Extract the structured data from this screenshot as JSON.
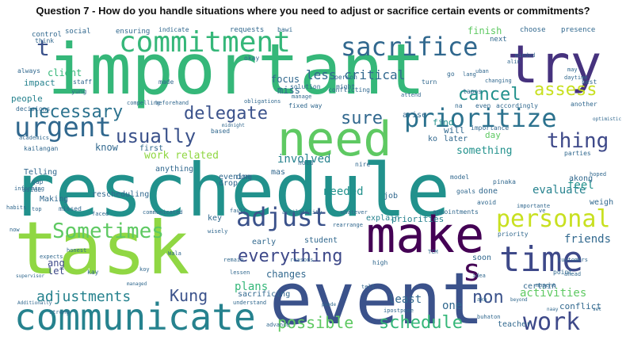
{
  "title": "Question 7 - How do you handle situations where you need to adjust or sacrifice certain events or commitments?",
  "palette": {
    "green": "#35b779",
    "lightgreen": "#90d743",
    "yellow": "#c8e020",
    "teal": "#21918c",
    "blue": "#31688e",
    "indigo": "#443983",
    "purple": "#440154",
    "cyan": "#26828e"
  },
  "words": [
    {
      "id": "reschedule",
      "text": "reschedule"
    },
    {
      "id": "important",
      "text": "important"
    },
    {
      "id": "event",
      "text": "event"
    },
    {
      "id": "task",
      "text": "task"
    },
    {
      "id": "make",
      "text": "make"
    },
    {
      "id": "need",
      "text": "need"
    },
    {
      "id": "communicate",
      "text": "communicate"
    },
    {
      "id": "try",
      "text": "try"
    },
    {
      "id": "commitment",
      "text": "commitment"
    },
    {
      "id": "sacrifice",
      "text": "sacrifice"
    },
    {
      "id": "time",
      "text": "time"
    },
    {
      "id": "prioritize",
      "text": "prioritize"
    },
    {
      "id": "urgent",
      "text": "urgent"
    },
    {
      "id": "personal",
      "text": "personal"
    },
    {
      "id": "adjust",
      "text": "adjust"
    },
    {
      "id": "work",
      "text": "work"
    },
    {
      "id": "sometimes",
      "text": "Sometimes"
    },
    {
      "id": "usually",
      "text": "usually"
    },
    {
      "id": "thing",
      "text": "thing"
    },
    {
      "id": "necessary",
      "text": "necessary"
    },
    {
      "id": "everything",
      "text": "everything"
    },
    {
      "id": "adjustments",
      "text": "adjustments"
    },
    {
      "id": "possible",
      "text": "possible"
    },
    {
      "id": "schedule",
      "text": "schedule"
    },
    {
      "id": "delegate",
      "text": "delegate"
    },
    {
      "id": "assess",
      "text": "assess"
    },
    {
      "id": "cancel",
      "text": "cancel"
    },
    {
      "id": "kung",
      "text": "Kung"
    },
    {
      "id": "situation",
      "text": "situation"
    },
    {
      "id": "sure",
      "text": "sure"
    },
    {
      "id": "non",
      "text": "non"
    },
    {
      "id": "s",
      "text": "s"
    },
    {
      "id": "t",
      "text": "t"
    },
    {
      "id": "less_critical",
      "text": "less critical"
    },
    {
      "id": "activities",
      "text": "activities"
    },
    {
      "id": "evaluate",
      "text": "evaluate"
    },
    {
      "id": "involved",
      "text": "involved"
    },
    {
      "id": "work_related",
      "text": "work related"
    },
    {
      "id": "least",
      "text": "least"
    },
    {
      "id": "focus",
      "text": "focus"
    },
    {
      "id": "changes",
      "text": "changes"
    },
    {
      "id": "needed",
      "text": "needed"
    },
    {
      "id": "inform",
      "text": "inform"
    },
    {
      "id": "something",
      "text": "something"
    },
    {
      "id": "plans",
      "text": "plans"
    },
    {
      "id": "ang",
      "text": "ang"
    },
    {
      "id": "let",
      "text": "let"
    },
    {
      "id": "one",
      "text": "one"
    },
    {
      "id": "friends",
      "text": "friends"
    },
    {
      "id": "feel",
      "text": "feel"
    },
    {
      "id": "know",
      "text": "know"
    },
    {
      "id": "miss",
      "text": "miss"
    },
    {
      "id": "finish",
      "text": "finish"
    },
    {
      "id": "client",
      "text": "client"
    },
    {
      "id": "impact",
      "text": "impact"
    },
    {
      "id": "people",
      "text": "people"
    },
    {
      "id": "find",
      "text": "find"
    },
    {
      "id": "day",
      "text": "day"
    },
    {
      "id": "will",
      "text": "will"
    },
    {
      "id": "conflict",
      "text": "conflict"
    },
    {
      "id": "rescheduling",
      "text": "rescheduling"
    },
    {
      "id": "telling",
      "text": "Telling"
    },
    {
      "id": "making",
      "text": "Making"
    },
    {
      "id": "priorities",
      "text": "priorities"
    },
    {
      "id": "explain",
      "text": "explain"
    },
    {
      "id": "drop",
      "text": "drop"
    },
    {
      "id": "early",
      "text": "early"
    },
    {
      "id": "sacrificing",
      "text": "sacrificing"
    },
    {
      "id": "certain",
      "text": "certain"
    },
    {
      "id": "teacher",
      "text": "teacher"
    },
    {
      "id": "akong",
      "text": "akong"
    },
    {
      "id": "weigh",
      "text": "weigh"
    },
    {
      "id": "first",
      "text": "first"
    },
    {
      "id": "arise",
      "text": "arise"
    },
    {
      "id": "ko",
      "text": "ko"
    },
    {
      "id": "later",
      "text": "later"
    },
    {
      "id": "done",
      "text": "done"
    },
    {
      "id": "job",
      "text": "job"
    },
    {
      "id": "mas",
      "text": "mas"
    },
    {
      "id": "don",
      "text": "don"
    },
    {
      "id": "evening",
      "text": "evening"
    },
    {
      "id": "anything",
      "text": "anything"
    },
    {
      "id": "key",
      "text": "key"
    },
    {
      "id": "student",
      "text": "student"
    },
    {
      "id": "soon",
      "text": "soon"
    },
    {
      "id": "control",
      "text": "control"
    },
    {
      "id": "social",
      "text": "social"
    },
    {
      "id": "ensuring",
      "text": "ensuring"
    },
    {
      "id": "indicate",
      "text": "indicate"
    },
    {
      "id": "requests",
      "text": "requests"
    },
    {
      "id": "bawi",
      "text": "bawi"
    },
    {
      "id": "choose",
      "text": "choose"
    },
    {
      "id": "presence",
      "text": "presence"
    },
    {
      "id": "next",
      "text": "next"
    },
    {
      "id": "think",
      "text": "think"
    },
    {
      "id": "always",
      "text": "always"
    },
    {
      "id": "staff",
      "text": "staff"
    },
    {
      "id": "yung",
      "text": "yung"
    },
    {
      "id": "decisions",
      "text": "decisions"
    },
    {
      "id": "academics",
      "text": "academics"
    },
    {
      "id": "made",
      "text": "made"
    },
    {
      "id": "compelling",
      "text": "compelling"
    },
    {
      "id": "beforehand",
      "text": "beforehand"
    },
    {
      "id": "obligations",
      "text": "obligations"
    },
    {
      "id": "solution",
      "text": "solution"
    },
    {
      "id": "conflicting",
      "text": "conflicting"
    },
    {
      "id": "person",
      "text": "person"
    },
    {
      "id": "might",
      "text": "might"
    },
    {
      "id": "okay",
      "text": "okay"
    },
    {
      "id": "manage",
      "text": "manage"
    },
    {
      "id": "fixed",
      "text": "fixed"
    },
    {
      "id": "way",
      "text": "way"
    },
    {
      "id": "attend",
      "text": "attend"
    },
    {
      "id": "turn",
      "text": "turn"
    },
    {
      "id": "go",
      "text": "go"
    },
    {
      "id": "lang",
      "text": "lang"
    },
    {
      "id": "uban",
      "text": "uban"
    },
    {
      "id": "changing",
      "text": "changing"
    },
    {
      "id": "tapos",
      "text": "tapos"
    },
    {
      "id": "alin",
      "text": "alin"
    },
    {
      "id": "minded",
      "text": "minded"
    },
    {
      "id": "may",
      "text": "may"
    },
    {
      "id": "daytime",
      "text": "daytime"
    },
    {
      "id": "best",
      "text": "best"
    },
    {
      "id": "na",
      "text": "na"
    },
    {
      "id": "even",
      "text": "even"
    },
    {
      "id": "accordingly",
      "text": "accordingly"
    },
    {
      "id": "another",
      "text": "another"
    },
    {
      "id": "optimistic",
      "text": "optimistic"
    },
    {
      "id": "importance",
      "text": "importance"
    },
    {
      "id": "parties",
      "text": "parties"
    },
    {
      "id": "based",
      "text": "based"
    },
    {
      "id": "midnight",
      "text": "midnight"
    },
    {
      "id": "kailangan",
      "text": "kailangan"
    },
    {
      "id": "hold",
      "text": "hold"
    },
    {
      "id": "nire",
      "text": "nire"
    },
    {
      "id": "pinaka",
      "text": "pinaka"
    },
    {
      "id": "goals",
      "text": "goals"
    },
    {
      "id": "appointments",
      "text": "appointments"
    },
    {
      "id": "avoid",
      "text": "avoid"
    },
    {
      "id": "model",
      "text": "model"
    },
    {
      "id": "importante",
      "text": "importante"
    },
    {
      "id": "hoped",
      "text": "hoped"
    },
    {
      "id": "gap",
      "text": "gap"
    },
    {
      "id": "aside",
      "text": "aside"
    },
    {
      "id": "informing",
      "text": "informing"
    },
    {
      "id": "habits",
      "text": "habits"
    },
    {
      "id": "top",
      "text": "top"
    },
    {
      "id": "missed",
      "text": "missed"
    },
    {
      "id": "faced",
      "text": "faced"
    },
    {
      "id": "communicated",
      "text": "communicated"
    },
    {
      "id": "fault",
      "text": "fault"
    },
    {
      "id": "availability",
      "text": "availability"
    },
    {
      "id": "whatever",
      "text": "whatever"
    },
    {
      "id": "rearrange",
      "text": "rearrange"
    },
    {
      "id": "priority",
      "text": "priority"
    },
    {
      "id": "ve",
      "text": "ve"
    },
    {
      "id": "customers",
      "text": "customers"
    },
    {
      "id": "now",
      "text": "now"
    },
    {
      "id": "supervisor",
      "text": "supervisor"
    },
    {
      "id": "additionally",
      "text": "Additionally"
    },
    {
      "id": "expects",
      "text": "expects"
    },
    {
      "id": "honest",
      "text": "honest"
    },
    {
      "id": "wisely",
      "text": "wisely"
    },
    {
      "id": "wala",
      "text": "Wala"
    },
    {
      "id": "remain",
      "text": "remain"
    },
    {
      "id": "reasons",
      "text": "reasons"
    },
    {
      "id": "high",
      "text": "high"
    },
    {
      "id": "tcm",
      "text": "TCM"
    },
    {
      "id": "point",
      "text": "point"
    },
    {
      "id": "kay",
      "text": "kay"
    },
    {
      "id": "managed",
      "text": "managed"
    },
    {
      "id": "koy",
      "text": "koy"
    },
    {
      "id": "lessen",
      "text": "lessen"
    },
    {
      "id": "understand",
      "text": "understand"
    },
    {
      "id": "strong",
      "text": "strong"
    },
    {
      "id": "advance",
      "text": "advance"
    },
    {
      "id": "tell",
      "text": "tell"
    },
    {
      "id": "ipostpone",
      "text": "ipostpone"
    },
    {
      "id": "idea",
      "text": "idea"
    },
    {
      "id": "ako",
      "text": "ako"
    },
    {
      "id": "moment",
      "text": "moment"
    },
    {
      "id": "ahead",
      "text": "ahead"
    },
    {
      "id": "beyond",
      "text": "beyond"
    },
    {
      "id": "naay",
      "text": "naay"
    },
    {
      "id": "set",
      "text": "set"
    },
    {
      "id": "buhaton",
      "text": "buhaton"
    },
    {
      "id": "pwede",
      "text": "pwede"
    }
  ]
}
